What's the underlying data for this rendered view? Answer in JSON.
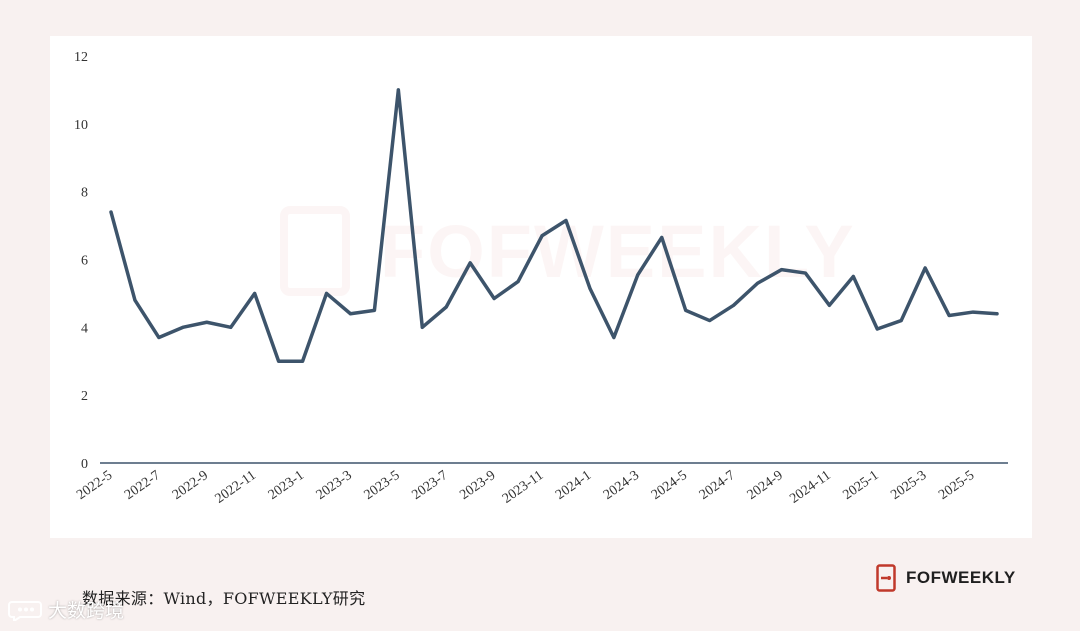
{
  "chart_data": {
    "type": "line",
    "title": "",
    "xlabel": "",
    "ylabel": "",
    "ylim": [
      0,
      12
    ],
    "y_ticks": [
      "0",
      "2",
      "4",
      "6",
      "8",
      "10",
      "12"
    ],
    "x_tick_labels": [
      "2022-5",
      "2022-7",
      "2022-9",
      "2022-11",
      "2023-1",
      "2023-3",
      "2023-5",
      "2023-7",
      "2023-9",
      "2023-11",
      "2024-1",
      "2024-3",
      "2024-5",
      "2024-7",
      "2024-9",
      "2024-11",
      "2025-1",
      "2025-3",
      "2025-5"
    ],
    "grid": false,
    "legend": "none",
    "line_color": "#3d546b",
    "series": [
      {
        "x": [
          "2022-5",
          "2022-6",
          "2022-7",
          "2022-8",
          "2022-9",
          "2022-10",
          "2022-11",
          "2022-12",
          "2023-1",
          "2023-2",
          "2023-3",
          "2023-4",
          "2023-5",
          "2023-6",
          "2023-7",
          "2023-8",
          "2023-9",
          "2023-10",
          "2023-11",
          "2023-12",
          "2024-1",
          "2024-2",
          "2024-3",
          "2024-4",
          "2024-5",
          "2024-6",
          "2024-7",
          "2024-8",
          "2024-9",
          "2024-10",
          "2024-11",
          "2024-12",
          "2025-1",
          "2025-2",
          "2025-3",
          "2025-4",
          "2025-5",
          "2025-6"
        ],
        "values": [
          7.4,
          4.8,
          3.7,
          4.0,
          4.15,
          4.0,
          5.0,
          3.0,
          3.0,
          5.0,
          4.4,
          4.5,
          11.0,
          4.0,
          4.6,
          5.9,
          4.85,
          5.35,
          6.7,
          7.15,
          5.15,
          3.7,
          5.55,
          6.65,
          4.5,
          4.2,
          4.65,
          5.3,
          5.7,
          5.6,
          4.65,
          5.5,
          3.95,
          4.2,
          5.75,
          4.35,
          4.45,
          4.4
        ]
      }
    ]
  },
  "footer": {
    "source": "数据来源：Wind，FOFWEEKLY研究",
    "brand": "FOFWEEKLY"
  },
  "watermark": {
    "corner_text": "大数跨境",
    "background_text": "FOFWEEKLY"
  },
  "colors": {
    "brand_red": "#c0392b",
    "line": "#3d546b",
    "background": "#f8f1f0"
  }
}
